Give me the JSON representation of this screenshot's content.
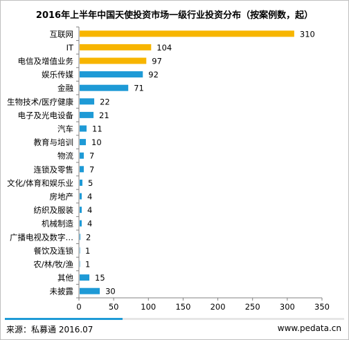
{
  "chart_data": {
    "type": "bar",
    "orientation": "horizontal",
    "title": "2016年上半年中国天使投资市场一级行业投资分布（按案例数，起）",
    "categories": [
      "互联网",
      "IT",
      "电信及增值业务",
      "娱乐传媒",
      "金融",
      "生物技术/医疗健康",
      "电子及光电设备",
      "汽车",
      "教育与培训",
      "物流",
      "连锁及零售",
      "文化/体育和娱乐业",
      "房地产",
      "纺织及服装",
      "机械制造",
      "广播电视及数字…",
      "餐饮及连锁",
      "农/林/牧/渔",
      "其他",
      "未披露"
    ],
    "values": [
      310,
      104,
      97,
      92,
      71,
      22,
      21,
      11,
      10,
      7,
      7,
      5,
      4,
      4,
      4,
      2,
      1,
      1,
      15,
      30
    ],
    "colors": [
      "#f7b500",
      "#f7b500",
      "#f7b500",
      "#1e9ad6",
      "#1e9ad6",
      "#1e9ad6",
      "#1e9ad6",
      "#1e9ad6",
      "#1e9ad6",
      "#1e9ad6",
      "#1e9ad6",
      "#1e9ad6",
      "#1e9ad6",
      "#1e9ad6",
      "#1e9ad6",
      "#1e9ad6",
      "#1e9ad6",
      "#1e9ad6",
      "#1e9ad6",
      "#1e9ad6"
    ],
    "xlim": [
      0,
      350
    ],
    "xticks": [
      0,
      50,
      100,
      150,
      200,
      250,
      300,
      350
    ],
    "grid": false,
    "legend": "none"
  },
  "footer": {
    "source": "来源：私募通 2016.07",
    "site": "www.pedata.cn"
  },
  "accent_color": "#1e9ad6",
  "highlight_color": "#f7b500"
}
